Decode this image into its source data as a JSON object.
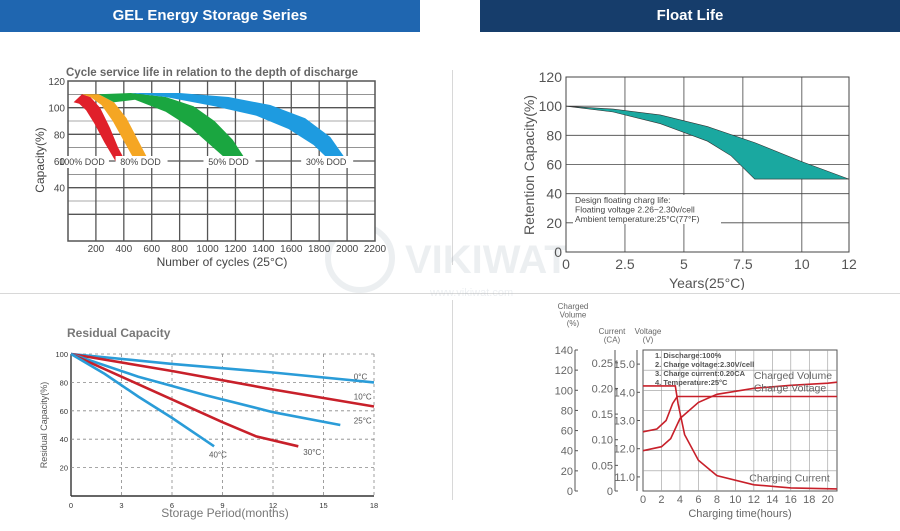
{
  "headers": {
    "left": "GEL Energy Storage Series",
    "right": "Float Life"
  },
  "watermark": {
    "brand": "VIKIWAT",
    "url": "www.vikiwat.com"
  },
  "colors": {
    "header_left": "#1f66b0",
    "header_right": "#163d6b",
    "red": "#e0202a",
    "orange": "#f5a623",
    "green": "#1aa640",
    "blue": "#1e9be0",
    "teal": "#1aa8a0",
    "line_red": "#c8202a",
    "line_blue": "#2a9cd8"
  },
  "chart_data": [
    {
      "id": "cycle",
      "type": "area",
      "title": "Cycle service life in relation to the depth of discharge",
      "xlabel": "Number of cycles (25°C)",
      "ylabel": "Capacity(%)",
      "xlim": [
        0,
        2200
      ],
      "ylim": [
        0,
        120
      ],
      "xticks": [
        "200",
        "400",
        "600",
        "800",
        "1000",
        "1200",
        "1400",
        "1600",
        "1800",
        "2000",
        "2200"
      ],
      "yticks": [
        "40",
        "60",
        "80",
        "100",
        "120"
      ],
      "grid": true,
      "series": [
        {
          "name": "100% DOD",
          "color": "#e0202a",
          "points": [
            [
              40,
              104
            ],
            [
              100,
              110
            ],
            [
              160,
              108
            ],
            [
              230,
              100
            ],
            [
              300,
              85
            ],
            [
              360,
              70
            ],
            [
              410,
              60
            ],
            [
              340,
              60
            ],
            [
              260,
              74
            ],
            [
              190,
              88
            ],
            [
              130,
              98
            ],
            [
              80,
              103
            ]
          ]
        },
        {
          "name": "80% DOD",
          "color": "#f5a623",
          "points": [
            [
              100,
              110
            ],
            [
              220,
              110
            ],
            [
              330,
              104
            ],
            [
              420,
              92
            ],
            [
              500,
              76
            ],
            [
              580,
              60
            ],
            [
              480,
              60
            ],
            [
              400,
              75
            ],
            [
              320,
              90
            ],
            [
              240,
              102
            ],
            [
              160,
              108
            ]
          ]
        },
        {
          "name": "50% DOD",
          "color": "#1aa640",
          "points": [
            [
              220,
              110
            ],
            [
              450,
              111
            ],
            [
              700,
              108
            ],
            [
              900,
              101
            ],
            [
              1050,
              90
            ],
            [
              1180,
              76
            ],
            [
              1280,
              60
            ],
            [
              1150,
              60
            ],
            [
              1020,
              72
            ],
            [
              880,
              85
            ],
            [
              700,
              97
            ],
            [
              480,
              106
            ],
            [
              330,
              104
            ]
          ]
        },
        {
          "name": "30% DOD",
          "color": "#1e9be0",
          "points": [
            [
              450,
              111
            ],
            [
              800,
              111
            ],
            [
              1150,
              108
            ],
            [
              1450,
              102
            ],
            [
              1700,
              92
            ],
            [
              1880,
              78
            ],
            [
              2000,
              60
            ],
            [
              1880,
              60
            ],
            [
              1760,
              72
            ],
            [
              1580,
              84
            ],
            [
              1350,
              94
            ],
            [
              1050,
              101
            ],
            [
              700,
              108
            ]
          ]
        }
      ]
    },
    {
      "id": "float",
      "type": "area",
      "xlabel": "Years(25°C)",
      "ylabel": "Retention Capacity(%)",
      "xlim": [
        0,
        12
      ],
      "ylim": [
        0,
        120
      ],
      "xticks": [
        "0",
        "2.5",
        "5",
        "7.5",
        "10",
        "12"
      ],
      "yticks": [
        "0",
        "20",
        "40",
        "60",
        "80",
        "100",
        "120"
      ],
      "grid": true,
      "annotation": [
        "Design floating charg life:",
        "Floating voltage 2.26~2.30v/cell",
        "Ambient temperature:25°C(77°F)"
      ],
      "upper": [
        [
          0,
          100
        ],
        [
          2,
          98
        ],
        [
          4,
          94
        ],
        [
          6,
          86
        ],
        [
          8,
          75
        ],
        [
          10,
          62
        ],
        [
          12,
          50
        ]
      ],
      "lower": [
        [
          0,
          100
        ],
        [
          2,
          96
        ],
        [
          4,
          88
        ],
        [
          6,
          76
        ],
        [
          7,
          66
        ],
        [
          8,
          50
        ]
      ]
    },
    {
      "id": "residual",
      "type": "line",
      "title": "Residual Capacity",
      "xlabel": "Storage Period(months)",
      "ylabel": "Residual Capacity(%)",
      "xlim": [
        0,
        18
      ],
      "ylim": [
        0,
        100
      ],
      "xticks": [
        "0",
        "3",
        "6",
        "9",
        "12",
        "15",
        "18"
      ],
      "yticks": [
        "20",
        "40",
        "60",
        "80",
        "100"
      ],
      "grid": true,
      "series": [
        {
          "name": "0°C",
          "color": "#2a9cd8",
          "points": [
            [
              0,
              100
            ],
            [
              6,
              93
            ],
            [
              12,
              87
            ],
            [
              18,
              80
            ]
          ]
        },
        {
          "name": "10°C",
          "color": "#c8202a",
          "points": [
            [
              0,
              100
            ],
            [
              6,
              88
            ],
            [
              12,
              75
            ],
            [
              18,
              63
            ]
          ]
        },
        {
          "name": "25°C",
          "color": "#2a9cd8",
          "points": [
            [
              0,
              100
            ],
            [
              4,
              84
            ],
            [
              8,
              71
            ],
            [
              12,
              59
            ],
            [
              16,
              50
            ]
          ]
        },
        {
          "name": "30°C",
          "color": "#c8202a",
          "points": [
            [
              0,
              100
            ],
            [
              3,
              84
            ],
            [
              6,
              68
            ],
            [
              9,
              52
            ],
            [
              11,
              42
            ],
            [
              13.5,
              35
            ]
          ]
        },
        {
          "name": "40°C",
          "color": "#2a9cd8",
          "points": [
            [
              0,
              100
            ],
            [
              2,
              86
            ],
            [
              4,
              70
            ],
            [
              6,
              55
            ],
            [
              7.5,
              43
            ],
            [
              8.5,
              35
            ]
          ]
        }
      ]
    },
    {
      "id": "charge",
      "type": "line",
      "xlabel": "Charging time(hours)",
      "xlim": [
        0,
        21
      ],
      "xticks": [
        "0",
        "2",
        "4",
        "6",
        "8",
        "10",
        "12",
        "14",
        "16",
        "18",
        "20"
      ],
      "axis_titles": {
        "volume": "Charged\nVolume\n(%)",
        "current": "Current\n(CA)",
        "voltage": "Voltage\n(V)"
      },
      "volume_ticks": [
        "0",
        "20",
        "40",
        "60",
        "80",
        "100",
        "120",
        "140"
      ],
      "current_ticks": [
        "0",
        "0.05",
        "0.10",
        "0.15",
        "0.20",
        "0.25"
      ],
      "voltage_ticks": [
        "11.0",
        "12.0",
        "13.0",
        "14.0",
        "15.0"
      ],
      "legend": [
        "1. Discharge:100%",
        "2. Charge voltage:2.30V/cell",
        "3. Charge current:0.20CA",
        "4. Temperature:25°C"
      ],
      "grid": true,
      "series": [
        {
          "name": "Charged Volume",
          "axis": "volume",
          "color": "#c8202a",
          "points": [
            [
              0,
              40
            ],
            [
              2,
              44
            ],
            [
              3,
              52
            ],
            [
              4,
              72
            ],
            [
              6,
              88
            ],
            [
              8,
              96
            ],
            [
              12,
              102
            ],
            [
              16,
              105
            ],
            [
              20,
              107
            ],
            [
              21,
              108
            ]
          ]
        },
        {
          "name": "Charge Voltage",
          "axis": "voltage",
          "color": "#c8202a",
          "points": [
            [
              0,
              12.6
            ],
            [
              1.5,
              12.7
            ],
            [
              2.5,
              13.0
            ],
            [
              3.2,
              13.6
            ],
            [
              3.7,
              13.85
            ],
            [
              6,
              13.85
            ],
            [
              21,
              13.85
            ]
          ]
        },
        {
          "name": "Charging Current",
          "axis": "current",
          "color": "#c8202a",
          "points": [
            [
              0,
              0.205
            ],
            [
              3.5,
              0.205
            ],
            [
              3.8,
              0.17
            ],
            [
              4.5,
              0.11
            ],
            [
              6,
              0.06
            ],
            [
              8,
              0.03
            ],
            [
              12,
              0.012
            ],
            [
              16,
              0.006
            ],
            [
              21,
              0.004
            ]
          ]
        }
      ]
    }
  ]
}
